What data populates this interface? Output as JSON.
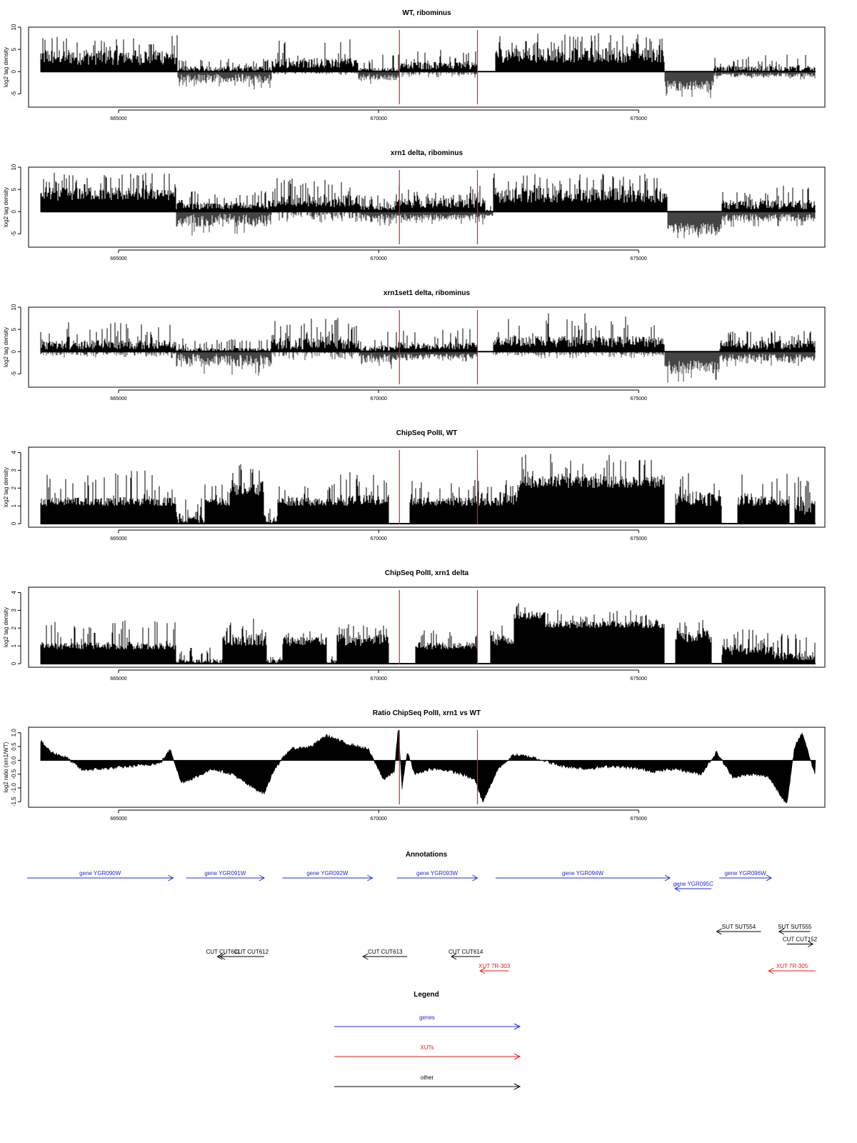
{
  "colors": {
    "foreground": "#000000",
    "marker": "#e0211b",
    "gene": "#1f2bd6",
    "xut": "#e0211b",
    "other": "#000000",
    "background": "#ffffff"
  },
  "x_axis": {
    "ticks": [
      665000,
      670000,
      675000
    ],
    "tick_labels": [
      "665000",
      "670000",
      "675000"
    ],
    "xlim": [
      663270,
      678580
    ]
  },
  "markers_x": [
    670400,
    671900
  ],
  "chart_data": [
    {
      "type": "bar",
      "title": "WT, ribominus",
      "ylabel": "log2 tag density",
      "ylim": [
        -8,
        10
      ],
      "yticks": [
        -5,
        0,
        5,
        10
      ],
      "ytick_labels": [
        "-5",
        "0",
        "5",
        "10"
      ],
      "baseline": 0,
      "x_range": [
        663500,
        678400
      ],
      "segments": [
        {
          "x": [
            663500,
            666130
          ],
          "signal": [
            1.5,
            5.5,
            8.5
          ],
          "neg": [
            0,
            0
          ]
        },
        {
          "x": [
            666130,
            667950
          ],
          "signal": [
            0,
            1.5,
            3.0
          ],
          "neg": [
            0.5,
            4.0
          ]
        },
        {
          "x": [
            667950,
            669600
          ],
          "signal": [
            0.8,
            3.5,
            7.5
          ],
          "neg": [
            0,
            0.8
          ]
        },
        {
          "x": [
            669600,
            670400
          ],
          "signal": [
            0,
            1.0,
            4.0
          ],
          "neg": [
            0.5,
            3.0
          ]
        },
        {
          "x": [
            670400,
            671900
          ],
          "signal": [
            0.5,
            2.5,
            5.0
          ],
          "neg": [
            0,
            1.5
          ]
        },
        {
          "x": [
            672250,
            675500
          ],
          "signal": [
            2.0,
            6.0,
            9.0
          ],
          "neg": [
            0,
            0
          ]
        },
        {
          "x": [
            675500,
            676450
          ],
          "signal": [
            0,
            0,
            0
          ],
          "neg": [
            2.0,
            6.0
          ]
        },
        {
          "x": [
            676450,
            678400
          ],
          "signal": [
            0,
            1.5,
            4.0
          ],
          "neg": [
            0.3,
            1.8
          ]
        }
      ]
    },
    {
      "type": "bar",
      "title": "xrn1 delta, ribominus",
      "ylabel": "log2 tag density",
      "ylim": [
        -8,
        10
      ],
      "yticks": [
        -5,
        0,
        5,
        10
      ],
      "ytick_labels": [
        "-5",
        "0",
        "5",
        "10"
      ],
      "baseline": 0,
      "x_range": [
        663500,
        678400
      ],
      "segments": [
        {
          "x": [
            663500,
            666100
          ],
          "signal": [
            2.5,
            6.0,
            9.0
          ],
          "neg": [
            0,
            0
          ]
        },
        {
          "x": [
            666100,
            667950
          ],
          "signal": [
            0.5,
            2.5,
            5.0
          ],
          "neg": [
            0.5,
            5.5
          ]
        },
        {
          "x": [
            667950,
            669650
          ],
          "signal": [
            1.0,
            4.5,
            8.0
          ],
          "neg": [
            0,
            2.5
          ]
        },
        {
          "x": [
            669650,
            670350
          ],
          "signal": [
            0.3,
            1.5,
            4.0
          ],
          "neg": [
            0.5,
            3.5
          ]
        },
        {
          "x": [
            670350,
            672050
          ],
          "signal": [
            0.8,
            3.5,
            6.5
          ],
          "neg": [
            0.5,
            3.0
          ]
        },
        {
          "x": [
            672050,
            672200
          ],
          "signal": [
            0,
            0.5,
            1.5
          ],
          "neg": [
            0.5,
            1.5
          ]
        },
        {
          "x": [
            672200,
            675550
          ],
          "signal": [
            2.0,
            6.0,
            9.0
          ],
          "neg": [
            0,
            0
          ]
        },
        {
          "x": [
            675550,
            676600
          ],
          "signal": [
            0,
            0,
            0
          ],
          "neg": [
            2.5,
            7.0
          ]
        },
        {
          "x": [
            676600,
            678400
          ],
          "signal": [
            0.5,
            3.0,
            6.0
          ],
          "neg": [
            0.5,
            3.5
          ]
        }
      ]
    },
    {
      "type": "bar",
      "title": "xrn1set1 delta, ribominus",
      "ylabel": "log2 tag density",
      "ylim": [
        -8,
        10
      ],
      "yticks": [
        -5,
        0,
        5,
        10
      ],
      "ytick_labels": [
        "-5",
        "0",
        "5",
        "10"
      ],
      "baseline": 0,
      "x_range": [
        663500,
        678400
      ],
      "segments": [
        {
          "x": [
            663500,
            666100
          ],
          "signal": [
            0.5,
            3.0,
            7.0
          ],
          "neg": [
            0,
            1.5
          ]
        },
        {
          "x": [
            666100,
            667950
          ],
          "signal": [
            0,
            1.0,
            3.0
          ],
          "neg": [
            0.5,
            5.5
          ]
        },
        {
          "x": [
            667950,
            669650
          ],
          "signal": [
            0.5,
            3.5,
            8.0
          ],
          "neg": [
            0,
            2.0
          ]
        },
        {
          "x": [
            669650,
            670350
          ],
          "signal": [
            0,
            1.5,
            5.0
          ],
          "neg": [
            0.5,
            4.0
          ]
        },
        {
          "x": [
            670350,
            671900
          ],
          "signal": [
            0.5,
            2.5,
            5.5
          ],
          "neg": [
            0.5,
            2.5
          ]
        },
        {
          "x": [
            672200,
            675500
          ],
          "signal": [
            1.0,
            4.0,
            9.0
          ],
          "neg": [
            0,
            1.5
          ]
        },
        {
          "x": [
            675500,
            676550
          ],
          "signal": [
            0,
            0,
            0
          ],
          "neg": [
            2.0,
            7.0
          ]
        },
        {
          "x": [
            676550,
            678400
          ],
          "signal": [
            0.5,
            3.0,
            5.0
          ],
          "neg": [
            0.5,
            3.5
          ]
        }
      ]
    },
    {
      "type": "bar",
      "title": "ChipSeq PolII, WT",
      "ylabel": "log2 tag density",
      "ylim": [
        -0.2,
        4.3
      ],
      "yticks": [
        0,
        1,
        2,
        3,
        4
      ],
      "ytick_labels": [
        "0",
        "1",
        "2",
        "3",
        "4"
      ],
      "baseline": 0,
      "x_range": [
        663500,
        678400
      ],
      "segments": [
        {
          "x": [
            663500,
            666100
          ],
          "signal": [
            1.0,
            1.58,
            3.0
          ]
        },
        {
          "x": [
            666100,
            666650
          ],
          "signal": [
            0,
            0.8,
            1.6
          ]
        },
        {
          "x": [
            666650,
            667150
          ],
          "signal": [
            1.0,
            1.58,
            2.3
          ]
        },
        {
          "x": [
            667150,
            667800
          ],
          "signal": [
            1.6,
            2.6,
            3.6
          ]
        },
        {
          "x": [
            667800,
            668050
          ],
          "signal": [
            0,
            0.5,
            1.0
          ]
        },
        {
          "x": [
            668050,
            669200
          ],
          "signal": [
            1.0,
            1.58,
            2.3
          ]
        },
        {
          "x": [
            669200,
            670200
          ],
          "signal": [
            1.0,
            1.8,
            3.0
          ]
        },
        {
          "x": [
            670600,
            672300
          ],
          "signal": [
            1.0,
            1.58,
            2.5
          ]
        },
        {
          "x": [
            672300,
            672700
          ],
          "signal": [
            1.0,
            2.0,
            2.6
          ]
        },
        {
          "x": [
            672700,
            675500
          ],
          "signal": [
            2.0,
            2.8,
            4.0
          ]
        },
        {
          "x": [
            675700,
            676600
          ],
          "signal": [
            1.0,
            1.9,
            3.0
          ]
        },
        {
          "x": [
            676900,
            677900
          ],
          "signal": [
            1.0,
            1.7,
            3.0
          ]
        },
        {
          "x": [
            678000,
            678400
          ],
          "signal": [
            0.5,
            1.5,
            2.8
          ]
        }
      ]
    },
    {
      "type": "bar",
      "title": "ChipSeq PolII, xrn1 delta",
      "ylabel": "log2 tag density",
      "ylim": [
        -0.2,
        4.3
      ],
      "yticks": [
        0,
        1,
        2,
        3,
        4
      ],
      "ytick_labels": [
        "0",
        "1",
        "2",
        "3",
        "4"
      ],
      "baseline": 0,
      "x_range": [
        663500,
        678400
      ],
      "segments": [
        {
          "x": [
            663500,
            666100
          ],
          "signal": [
            0.8,
            1.3,
            2.5
          ]
        },
        {
          "x": [
            666100,
            667000
          ],
          "signal": [
            0,
            0.3,
            1.0
          ]
        },
        {
          "x": [
            667000,
            667850
          ],
          "signal": [
            1.0,
            1.8,
            2.7
          ]
        },
        {
          "x": [
            667850,
            668150
          ],
          "signal": [
            0,
            0.3,
            0.5
          ]
        },
        {
          "x": [
            668150,
            669000
          ],
          "signal": [
            1.0,
            1.6,
            2.2
          ]
        },
        {
          "x": [
            669000,
            669200
          ],
          "signal": [
            0,
            0.3,
            0.5
          ]
        },
        {
          "x": [
            669200,
            670200
          ],
          "signal": [
            1.0,
            1.8,
            2.3
          ]
        },
        {
          "x": [
            670700,
            671900
          ],
          "signal": [
            0.8,
            1.3,
            2.0
          ]
        },
        {
          "x": [
            672150,
            672600
          ],
          "signal": [
            1.0,
            1.8,
            2.3
          ]
        },
        {
          "x": [
            672600,
            673200
          ],
          "signal": [
            2.5,
            3.0,
            3.5
          ]
        },
        {
          "x": [
            673200,
            675500
          ],
          "signal": [
            2.0,
            2.5,
            3.2
          ]
        },
        {
          "x": [
            675700,
            676400
          ],
          "signal": [
            1.2,
            2.0,
            2.6
          ]
        },
        {
          "x": [
            676600,
            677600
          ],
          "signal": [
            0.5,
            1.2,
            2.0
          ]
        },
        {
          "x": [
            677600,
            678400
          ],
          "signal": [
            0.2,
            0.8,
            1.8
          ]
        }
      ]
    },
    {
      "type": "area",
      "title": "Ratio ChipSeq PolII, xrn1 vs WT",
      "ylabel": "log2 ratio (xrn1/WT)",
      "ylim": [
        -1.7,
        1.2
      ],
      "yticks": [
        -1.5,
        -1.0,
        -0.5,
        0.0,
        0.5,
        1.0
      ],
      "ytick_labels": [
        "-1.5",
        "-1.0",
        "-0.5",
        "0.0",
        "0.5",
        "1.0"
      ],
      "baseline": 0,
      "x": [
        663500,
        663700,
        664000,
        664300,
        664700,
        665300,
        665800,
        666000,
        666200,
        666500,
        666800,
        667200,
        667500,
        667800,
        668000,
        668300,
        668700,
        669000,
        669400,
        669800,
        670100,
        670300,
        670380,
        670450,
        670550,
        670700,
        671000,
        671300,
        671600,
        671850,
        672000,
        672300,
        672600,
        673000,
        673500,
        674000,
        674500,
        675000,
        675300,
        675700,
        676200,
        676500,
        676800,
        677200,
        677500,
        677850,
        678000,
        678150,
        678400
      ],
      "y": [
        0.7,
        0.3,
        0.1,
        -0.35,
        -0.3,
        -0.2,
        -0.1,
        0.4,
        -0.8,
        -0.6,
        -0.3,
        -0.5,
        -0.9,
        -1.2,
        -0.3,
        0.4,
        0.5,
        0.9,
        0.6,
        0.4,
        -0.7,
        -0.4,
        1.2,
        -1.0,
        0.3,
        -0.5,
        -0.3,
        -0.35,
        -0.5,
        -0.7,
        -1.5,
        -0.3,
        0.2,
        0.1,
        -0.2,
        -0.3,
        -0.2,
        -0.3,
        -0.4,
        -0.3,
        -0.5,
        0.3,
        -0.6,
        -0.5,
        -0.6,
        -1.6,
        0.5,
        1.0,
        -0.6
      ]
    }
  ],
  "annotations": {
    "title": "Annotations",
    "items": [
      {
        "label": "gene YGR090W",
        "kind": "gene",
        "x1": 663000,
        "x2": 666050,
        "dir": "right",
        "row": 0
      },
      {
        "label": "gene YGR091W",
        "kind": "gene",
        "x1": 666300,
        "x2": 667800,
        "dir": "right",
        "row": 0
      },
      {
        "label": "gene YGR092W",
        "kind": "gene",
        "x1": 668150,
        "x2": 669880,
        "dir": "right",
        "row": 0
      },
      {
        "label": "gene YGR093W",
        "kind": "gene",
        "x1": 670350,
        "x2": 671900,
        "dir": "right",
        "row": 0
      },
      {
        "label": "gene YGR094W",
        "kind": "gene",
        "x1": 672250,
        "x2": 675600,
        "dir": "right",
        "row": 0
      },
      {
        "label": "gene YGR095C",
        "kind": "gene",
        "x1": 675700,
        "x2": 676400,
        "dir": "left",
        "row": 0.3
      },
      {
        "label": "gene YGR096W",
        "kind": "gene",
        "x1": 676550,
        "x2": 677550,
        "dir": "right",
        "row": 0
      },
      {
        "label": "SUT SUT554",
        "kind": "other",
        "x1": 676500,
        "x2": 677350,
        "dir": "left",
        "row": 1.5
      },
      {
        "label": "SUT SUT555",
        "kind": "other",
        "x1": 677700,
        "x2": 678300,
        "dir": "left",
        "row": 1.5
      },
      {
        "label": "CUT CUT152",
        "kind": "other",
        "x1": 677850,
        "x2": 678350,
        "dir": "right",
        "row": 1.85
      },
      {
        "label": "CUT CUT611",
        "kind": "other",
        "x1": 666900,
        "x2": 667450,
        "dir": "left",
        "row": 2.2
      },
      {
        "label": "CUT CUT612",
        "kind": "other",
        "x1": 666950,
        "x2": 667800,
        "dir": "left",
        "row": 2.2
      },
      {
        "label": "CUT CUT613",
        "kind": "other",
        "x1": 669700,
        "x2": 670550,
        "dir": "left",
        "row": 2.2
      },
      {
        "label": "CUT CUT614",
        "kind": "other",
        "x1": 671400,
        "x2": 671950,
        "dir": "left",
        "row": 2.2
      },
      {
        "label": "XUT 7R-303",
        "kind": "xut",
        "x1": 671950,
        "x2": 672500,
        "dir": "left",
        "row": 2.6
      },
      {
        "label": "XUT 7R-305",
        "kind": "xut",
        "x1": 677500,
        "x2": 678400,
        "dir": "left",
        "row": 2.6
      }
    ]
  },
  "legend": {
    "title": "Legend",
    "items": [
      {
        "label": "genes",
        "kind": "gene"
      },
      {
        "label": "XUTs",
        "kind": "xut"
      },
      {
        "label": "other",
        "kind": "other"
      }
    ]
  }
}
